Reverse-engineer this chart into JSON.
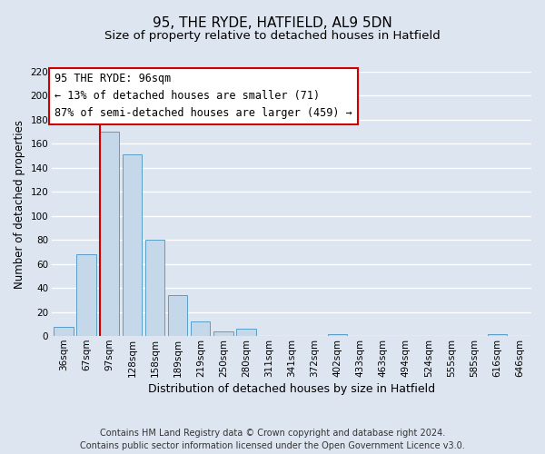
{
  "title": "95, THE RYDE, HATFIELD, AL9 5DN",
  "subtitle": "Size of property relative to detached houses in Hatfield",
  "xlabel": "Distribution of detached houses by size in Hatfield",
  "ylabel": "Number of detached properties",
  "bar_color": "#c5d8ea",
  "bar_edge_color": "#5b9ec9",
  "categories": [
    "36sqm",
    "67sqm",
    "97sqm",
    "128sqm",
    "158sqm",
    "189sqm",
    "219sqm",
    "250sqm",
    "280sqm",
    "311sqm",
    "341sqm",
    "372sqm",
    "402sqm",
    "433sqm",
    "463sqm",
    "494sqm",
    "524sqm",
    "555sqm",
    "585sqm",
    "616sqm",
    "646sqm"
  ],
  "values": [
    8,
    68,
    170,
    151,
    80,
    34,
    12,
    4,
    6,
    0,
    0,
    0,
    2,
    0,
    0,
    0,
    0,
    0,
    0,
    2,
    0
  ],
  "ylim": [
    0,
    220
  ],
  "yticks": [
    0,
    20,
    40,
    60,
    80,
    100,
    120,
    140,
    160,
    180,
    200,
    220
  ],
  "red_line_index": 2,
  "annotation_line1": "95 THE RYDE: 96sqm",
  "annotation_line2": "← 13% of detached houses are smaller (71)",
  "annotation_line3": "87% of semi-detached houses are larger (459) →",
  "annotation_box_color": "#ffffff",
  "annotation_box_edge_color": "#cc0000",
  "footer_line1": "Contains HM Land Registry data © Crown copyright and database right 2024.",
  "footer_line2": "Contains public sector information licensed under the Open Government Licence v3.0.",
  "fig_background_color": "#dde6f0",
  "axes_background_color": "#dde6f0",
  "grid_color": "#ffffff",
  "title_fontsize": 11,
  "subtitle_fontsize": 9.5,
  "xlabel_fontsize": 9,
  "ylabel_fontsize": 8.5,
  "tick_fontsize": 7.5,
  "annotation_fontsize": 8.5,
  "footer_fontsize": 7
}
